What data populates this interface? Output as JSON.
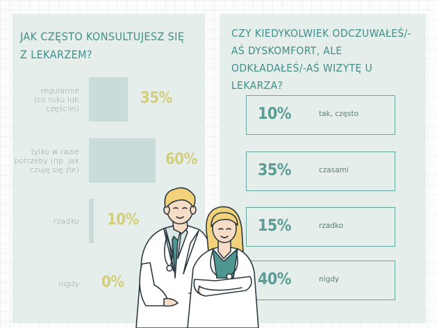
{
  "left": {
    "title": "JAK CZĘSTO KONSULTUJESZ SIĘ Z LEKARZEM?"
  },
  "right": {
    "title": "CZY KIEDYKOLWIEK ODCZUWAŁEŚ/-AŚ DYSKOMFORT, ALE ODKŁADAŁEŚ/-AŚ WIZYTĘ U  LEKARZA?"
  },
  "chart_data": [
    {
      "type": "bar",
      "orientation": "horizontal",
      "title": "JAK CZĘSTO KONSULTUJESZ SIĘ Z LEKARZEM?",
      "categories": [
        "regularnie (co roku lub częściej)",
        "tylko w razie potrzeby (np. jak czuję się źle)",
        "rzadko",
        "nigdy"
      ],
      "category_lines": [
        [
          "regularnie",
          "(co roku lub",
          "częściej)"
        ],
        [
          "tylko w razie",
          "potrzeby (np. jak",
          "czuję się źle)"
        ],
        [
          "rzadko"
        ],
        [
          "nigdy"
        ]
      ],
      "values": [
        35,
        60,
        10,
        0
      ],
      "value_labels": [
        "35%",
        "60%",
        "10%",
        "0%"
      ],
      "unit": "%",
      "colors": {
        "bar": "#c9dcd9",
        "value": "#d3ce7a"
      }
    },
    {
      "type": "table",
      "title": "CZY KIEDYKOLWIEK ODCZUWAŁEŚ/-AŚ DYSKOMFORT, ALE ODKŁADAŁEŚ/-AŚ WIZYTĘ U  LEKARZA?",
      "categories": [
        "tak, często",
        "czasami",
        "rzadko",
        "nigdy"
      ],
      "values": [
        10,
        35,
        15,
        40
      ],
      "value_labels": [
        "10%",
        "35%",
        "15%",
        "40%"
      ],
      "unit": "%",
      "colors": {
        "border": "#5fa59c",
        "value": "#5a9d95"
      }
    }
  ],
  "colors": {
    "panel": "#e6eeec",
    "title": "#3f8f89",
    "background": "#fbfcfb"
  },
  "illustration": "two-doctors-illustration"
}
